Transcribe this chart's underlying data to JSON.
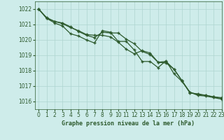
{
  "title": "Graphe pression niveau de la mer (hPa)",
  "bg_color": "#ceecea",
  "line_color": "#2d5a2d",
  "grid_color": "#aed4d0",
  "xlim": [
    -0.5,
    23
  ],
  "ylim": [
    1015.5,
    1022.5
  ],
  "yticks": [
    1016,
    1017,
    1018,
    1019,
    1020,
    1021,
    1022
  ],
  "xticks": [
    0,
    1,
    2,
    3,
    4,
    5,
    6,
    7,
    8,
    9,
    10,
    11,
    12,
    13,
    14,
    15,
    16,
    17,
    18,
    19,
    20,
    21,
    22,
    23
  ],
  "line1_x": [
    0,
    1,
    2,
    3,
    4,
    5,
    6,
    7,
    8,
    9,
    10,
    11,
    12,
    13,
    14,
    15,
    16,
    17,
    18,
    19,
    20,
    21,
    22,
    23
  ],
  "line1_y": [
    1022.0,
    1021.45,
    1021.2,
    1021.1,
    1020.85,
    1020.55,
    1020.3,
    1020.15,
    1020.5,
    1020.45,
    1020.45,
    1020.05,
    1019.75,
    1019.25,
    1019.05,
    1018.55,
    1018.6,
    1018.1,
    1017.35,
    1016.55,
    1016.5,
    1016.4,
    1016.3,
    1016.2
  ],
  "line2_x": [
    0,
    1,
    2,
    3,
    4,
    5,
    6,
    7,
    8,
    9,
    10,
    11,
    12,
    13,
    14,
    15,
    16,
    17,
    18,
    19,
    20,
    21,
    22,
    23
  ],
  "line2_y": [
    1022.0,
    1021.4,
    1021.1,
    1020.9,
    1020.4,
    1020.25,
    1020.0,
    1019.8,
    1020.6,
    1020.5,
    1019.9,
    1019.9,
    1019.35,
    1018.6,
    1018.6,
    1018.2,
    1018.65,
    1017.8,
    1017.3,
    1016.6,
    1016.4,
    1016.35,
    1016.25,
    1016.15
  ],
  "line3_x": [
    0,
    1,
    2,
    3,
    4,
    5,
    6,
    7,
    8,
    9,
    10,
    11,
    12,
    13,
    14,
    15,
    16,
    17,
    18,
    19,
    20,
    21,
    22,
    23
  ],
  "line3_y": [
    1022.0,
    1021.4,
    1021.2,
    1021.05,
    1020.8,
    1020.6,
    1020.35,
    1020.3,
    1020.3,
    1020.2,
    1019.85,
    1019.4,
    1019.1,
    1019.3,
    1019.15,
    1018.55,
    1018.5,
    1018.1,
    1017.35,
    1016.6,
    1016.45,
    1016.4,
    1016.3,
    1016.25
  ]
}
